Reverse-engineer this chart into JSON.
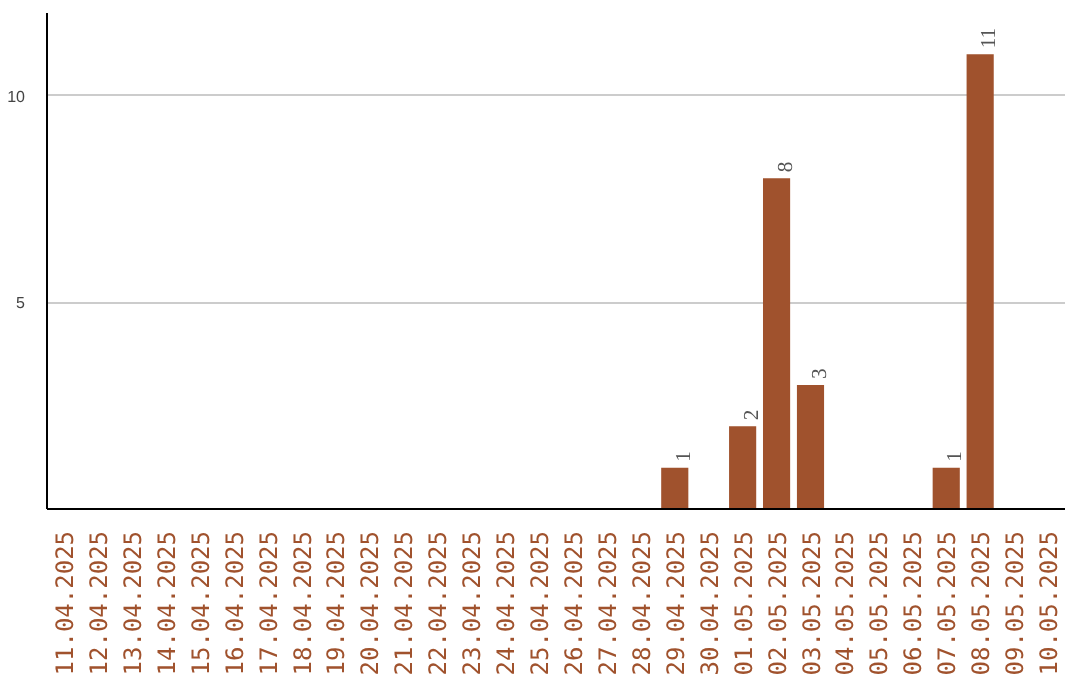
{
  "chart_data": {
    "type": "bar",
    "categories": [
      "11.04.2025",
      "12.04.2025",
      "13.04.2025",
      "14.04.2025",
      "15.04.2025",
      "16.04.2025",
      "17.04.2025",
      "18.04.2025",
      "19.04.2025",
      "20.04.2025",
      "21.04.2025",
      "22.04.2025",
      "23.04.2025",
      "24.04.2025",
      "25.04.2025",
      "26.04.2025",
      "27.04.2025",
      "28.04.2025",
      "29.04.2025",
      "30.04.2025",
      "01.05.2025",
      "02.05.2025",
      "03.05.2025",
      "04.05.2025",
      "05.05.2025",
      "06.05.2025",
      "07.05.2025",
      "08.05.2025",
      "09.05.2025",
      "10.05.2025"
    ],
    "values": [
      0,
      0,
      0,
      0,
      0,
      0,
      0,
      0,
      0,
      0,
      0,
      0,
      0,
      0,
      0,
      0,
      0,
      0,
      1,
      0,
      2,
      8,
      3,
      0,
      0,
      0,
      1,
      11,
      0,
      0
    ],
    "value_labels": [
      null,
      null,
      null,
      null,
      null,
      null,
      null,
      null,
      null,
      null,
      null,
      null,
      null,
      null,
      null,
      null,
      null,
      null,
      "1",
      null,
      "2",
      "8",
      "3",
      null,
      null,
      null,
      "1",
      "11",
      null,
      null
    ],
    "color": "#a0522d",
    "ylim": [
      0,
      12
    ],
    "yticks": [
      5,
      10
    ],
    "grid": "y"
  }
}
